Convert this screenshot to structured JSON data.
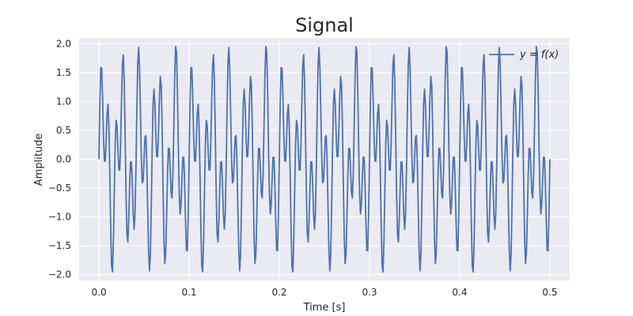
{
  "colors": {
    "plot_background": "#eaeaf2",
    "grid": "#ffffff",
    "series_line": "#4c72b0",
    "text": "#262626"
  },
  "chart_data": {
    "type": "line",
    "title": "Signal",
    "xlabel": "Time [s]",
    "ylabel": "Amplitude",
    "xlim": [
      -0.022,
      0.522
    ],
    "ylim": [
      -2.1,
      2.1
    ],
    "x_ticks": [
      0.0,
      0.1,
      0.2,
      0.3,
      0.4,
      0.5
    ],
    "x_tick_labels": [
      "0.0",
      "0.1",
      "0.2",
      "0.3",
      "0.4",
      "0.5"
    ],
    "y_ticks": [
      -2.0,
      -1.5,
      -1.0,
      -0.5,
      0.0,
      0.5,
      1.0,
      1.5,
      2.0
    ],
    "y_tick_labels": [
      "−2.0",
      "−1.5",
      "−1.0",
      "−0.5",
      "0.0",
      "0.5",
      "1.0",
      "1.5",
      "2.0"
    ],
    "grid": true,
    "legend": {
      "placement": "top-right",
      "entries": [
        "y = f(x)"
      ]
    },
    "series": [
      {
        "name": "y = f(x)",
        "function": "sin(2*pi*50*t) + sin(2*pi*120*t)",
        "x_range": [
          0.0,
          0.5
        ],
        "sample_step": 0.001
      }
    ]
  }
}
